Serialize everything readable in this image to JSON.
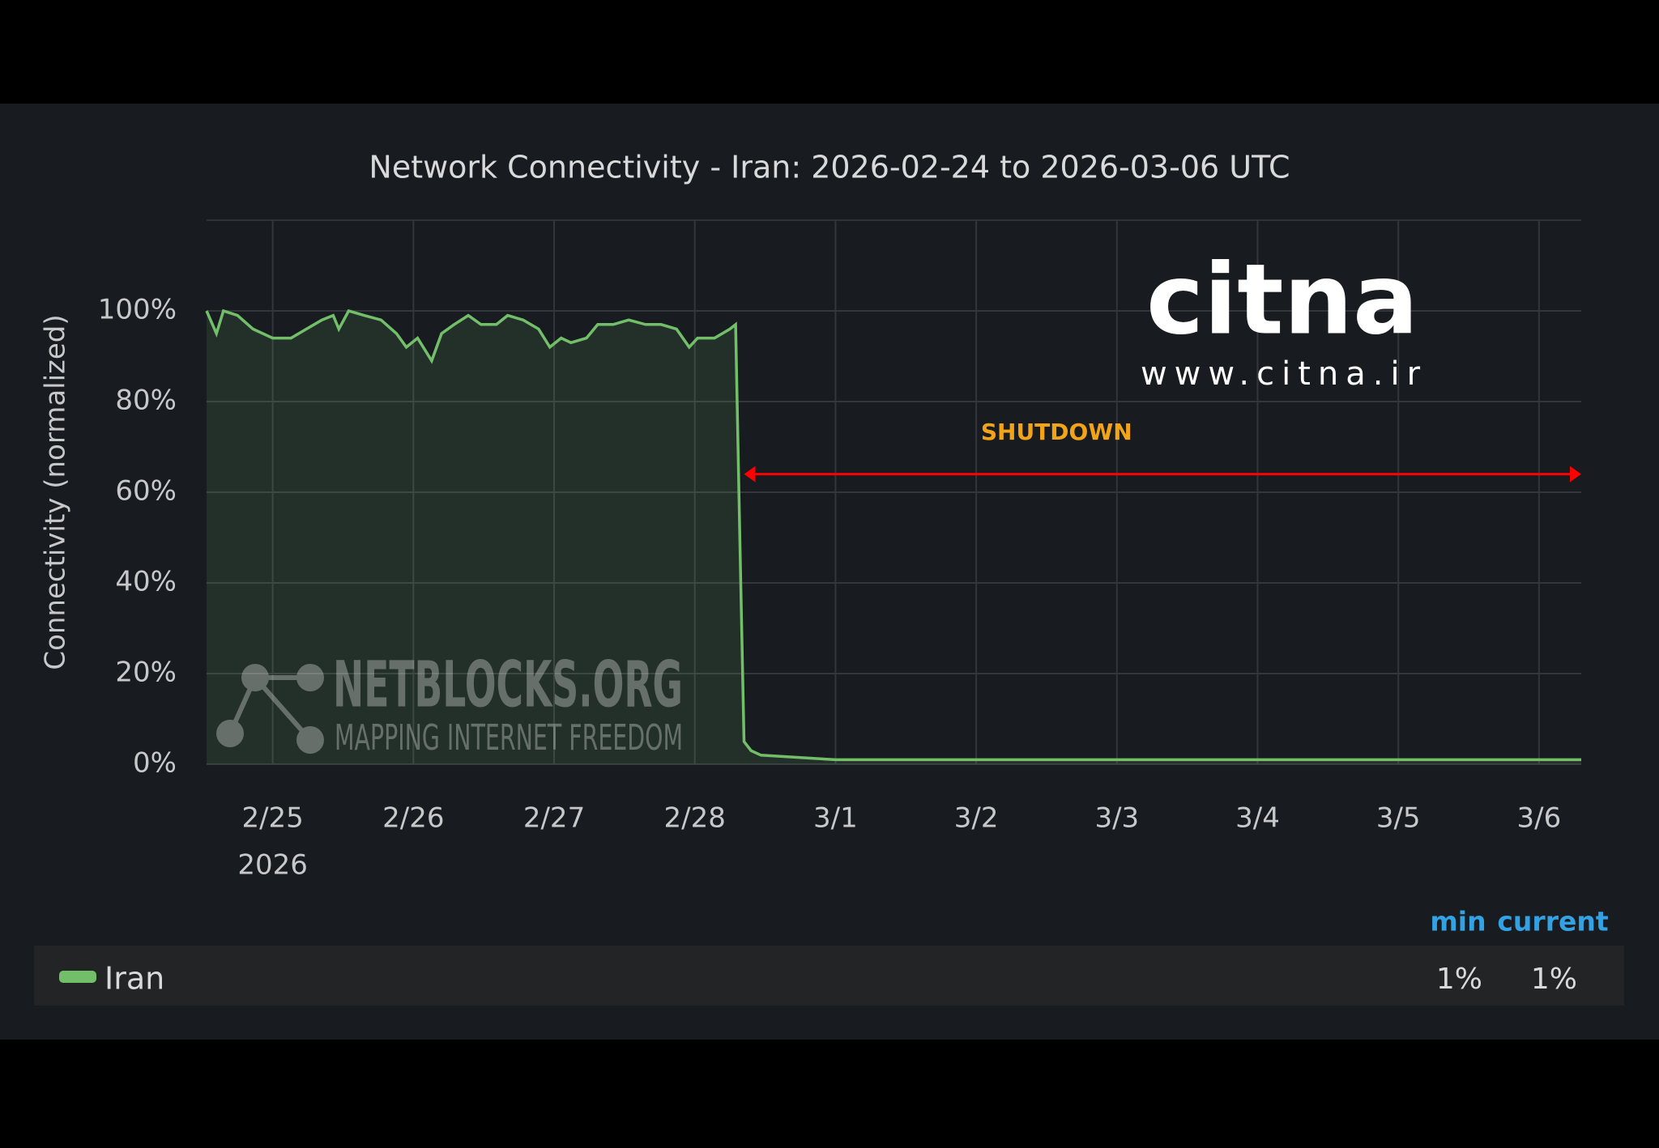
{
  "chart_data": {
    "type": "line",
    "title": "Network Connectivity - Iran: 2026-02-24 to 2026-03-06 UTC",
    "y_label": "Connectivity (normalized)",
    "x": [
      0.53,
      0.6,
      0.65,
      0.75,
      0.86,
      1.0,
      1.13,
      1.24,
      1.35,
      1.43,
      1.47,
      1.54,
      1.65,
      1.77,
      1.88,
      1.95,
      2.03,
      2.13,
      2.2,
      2.29,
      2.39,
      2.48,
      2.59,
      2.67,
      2.78,
      2.89,
      2.97,
      3.05,
      3.12,
      3.23,
      3.31,
      3.42,
      3.53,
      3.65,
      3.76,
      3.87,
      3.96,
      4.02,
      4.14,
      4.25,
      4.29,
      4.32,
      4.35,
      4.4,
      4.47,
      5,
      6,
      7,
      8,
      9,
      10,
      10.3
    ],
    "series": [
      {
        "name": "Iran",
        "color": "#73bf69",
        "values": [
          100,
          95,
          100,
          99,
          96,
          94,
          94,
          96,
          98,
          99,
          96,
          100,
          99,
          98,
          95,
          92,
          94,
          89,
          95,
          97,
          99,
          97,
          97,
          99,
          98,
          96,
          92,
          94,
          93,
          94,
          97,
          97,
          98,
          97,
          97,
          96,
          92,
          94,
          94,
          96,
          97,
          50,
          5,
          3,
          2,
          1,
          1,
          1,
          1,
          1,
          1,
          1
        ]
      }
    ],
    "xlim": [
      0.53,
      10.3
    ],
    "xticks": [
      {
        "value": 1,
        "label": "2/25"
      },
      {
        "value": 2,
        "label": "2/26"
      },
      {
        "value": 3,
        "label": "2/27"
      },
      {
        "value": 4,
        "label": "2/28"
      },
      {
        "value": 5,
        "label": "3/1"
      },
      {
        "value": 6,
        "label": "3/2"
      },
      {
        "value": 7,
        "label": "3/3"
      },
      {
        "value": 8,
        "label": "3/4"
      },
      {
        "value": 9,
        "label": "3/5"
      },
      {
        "value": 10,
        "label": "3/6"
      }
    ],
    "xticks_secondary": [
      {
        "value": 1,
        "label": "2026"
      }
    ],
    "ylim": [
      0,
      120
    ],
    "yticks": [
      {
        "value": 0,
        "label": "0%"
      },
      {
        "value": 20,
        "label": "20%"
      },
      {
        "value": 40,
        "label": "40%"
      },
      {
        "value": 60,
        "label": "60%"
      },
      {
        "value": 80,
        "label": "80%"
      },
      {
        "value": 100,
        "label": "100%"
      }
    ],
    "grid": true,
    "annotations": [
      {
        "text": "SHUTDOWN",
        "x": [
          4.35,
          10.3
        ],
        "y": 64,
        "color": "#ff0000"
      }
    ],
    "legend_stats": [
      {
        "name": "min",
        "value": 1,
        "label": "1%"
      },
      {
        "name": "current",
        "value": 1,
        "label": "1%"
      }
    ],
    "watermarks": {
      "logo": "citna",
      "url": "www.citna.ir",
      "brand": "NETBLOCKS.ORG",
      "tagline": "MAPPING INTERNET FREEDOM"
    }
  }
}
